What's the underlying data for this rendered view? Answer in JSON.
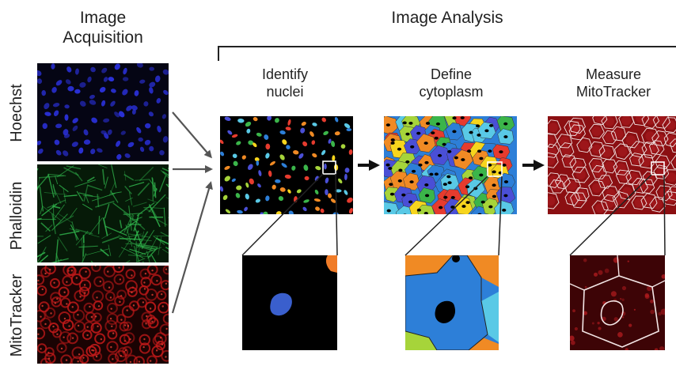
{
  "headers": {
    "acquisition_line1": "Image",
    "acquisition_line2": "Acquisition",
    "analysis": "Image Analysis"
  },
  "channels": [
    {
      "label": "Hoechst",
      "color": "#2a30d8"
    },
    {
      "label": "Phalloidin",
      "color": "#2fb04a"
    },
    {
      "label": "MitoTracker",
      "color": "#c41a1a"
    }
  ],
  "steps": [
    {
      "line1": "Identify",
      "line2": "nuclei"
    },
    {
      "line1": "Define",
      "line2": "cytoplasm"
    },
    {
      "line1": "Measure",
      "line2": "MitoTracker"
    }
  ],
  "colors": {
    "nucleus_blue": "#3a5fcd",
    "zoom_orange": "#f07c28",
    "segment_palette": [
      "#e63b2e",
      "#f7d51d",
      "#3bb54a",
      "#2d7fd8",
      "#59c9e6",
      "#f08a24",
      "#4a4fd6",
      "#a6d43a"
    ],
    "mito_red": "#8b0f12"
  }
}
